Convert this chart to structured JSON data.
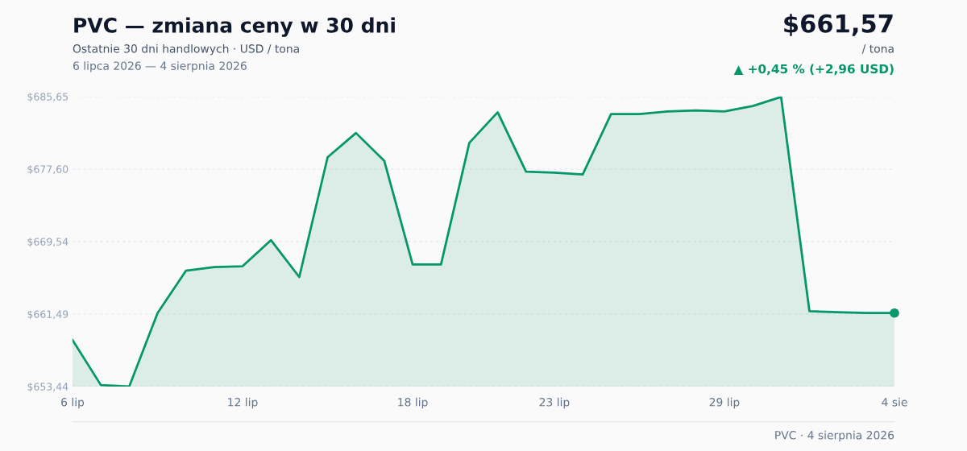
{
  "chart_data": {
    "type": "area",
    "title": "PVC — zmiana ceny w 30 dni",
    "subtitle": "Ostatnie 30 dni handlowych · USD / tona",
    "annotations": [
      "6 lipca 2026 — 4 sierpnia 2026",
      "$661,57",
      "/ tona",
      "▲ +0,45 % (+2,96 USD)",
      "PVC · 4 sierpnia 2026"
    ],
    "categories": [
      "6 lip",
      null,
      null,
      null,
      null,
      null,
      "12 lip",
      null,
      null,
      null,
      null,
      null,
      "18 lip",
      null,
      null,
      null,
      null,
      "23 lip",
      null,
      null,
      null,
      null,
      null,
      "29 lip",
      null,
      null,
      null,
      null,
      null,
      "4 sie"
    ],
    "series": [
      {
        "color": "#059669",
        "values": [
          658.6,
          653.6,
          653.44,
          661.6,
          666.3,
          666.7,
          666.8,
          669.7,
          665.6,
          678.9,
          681.6,
          678.5,
          667.0,
          667.0,
          680.5,
          683.9,
          677.3,
          677.2,
          677.0,
          683.7,
          683.7,
          684.0,
          684.1,
          684.0,
          684.6,
          685.6,
          661.8,
          661.7,
          661.6,
          661.6
        ]
      },
      {
        "type": "scatter",
        "marker": "circle",
        "color": "#07986b",
        "values": [
          null,
          null,
          null,
          null,
          null,
          null,
          null,
          null,
          null,
          null,
          null,
          null,
          null,
          null,
          null,
          null,
          null,
          null,
          null,
          null,
          null,
          null,
          null,
          null,
          null,
          null,
          null,
          null,
          null,
          661.6
        ]
      }
    ],
    "ylim": [
      653.44,
      685.65
    ],
    "yticks": [
      {
        "value": 653.44,
        "label": "$653,44"
      },
      {
        "value": 661.49,
        "label": "$661,49"
      },
      {
        "value": 669.54,
        "label": "$669,54"
      },
      {
        "value": 677.6,
        "label": "$677,60"
      },
      {
        "value": 685.65,
        "label": "$685,65"
      }
    ],
    "grid": "y",
    "legend": false,
    "marker": "none",
    "line_style": "solid"
  }
}
